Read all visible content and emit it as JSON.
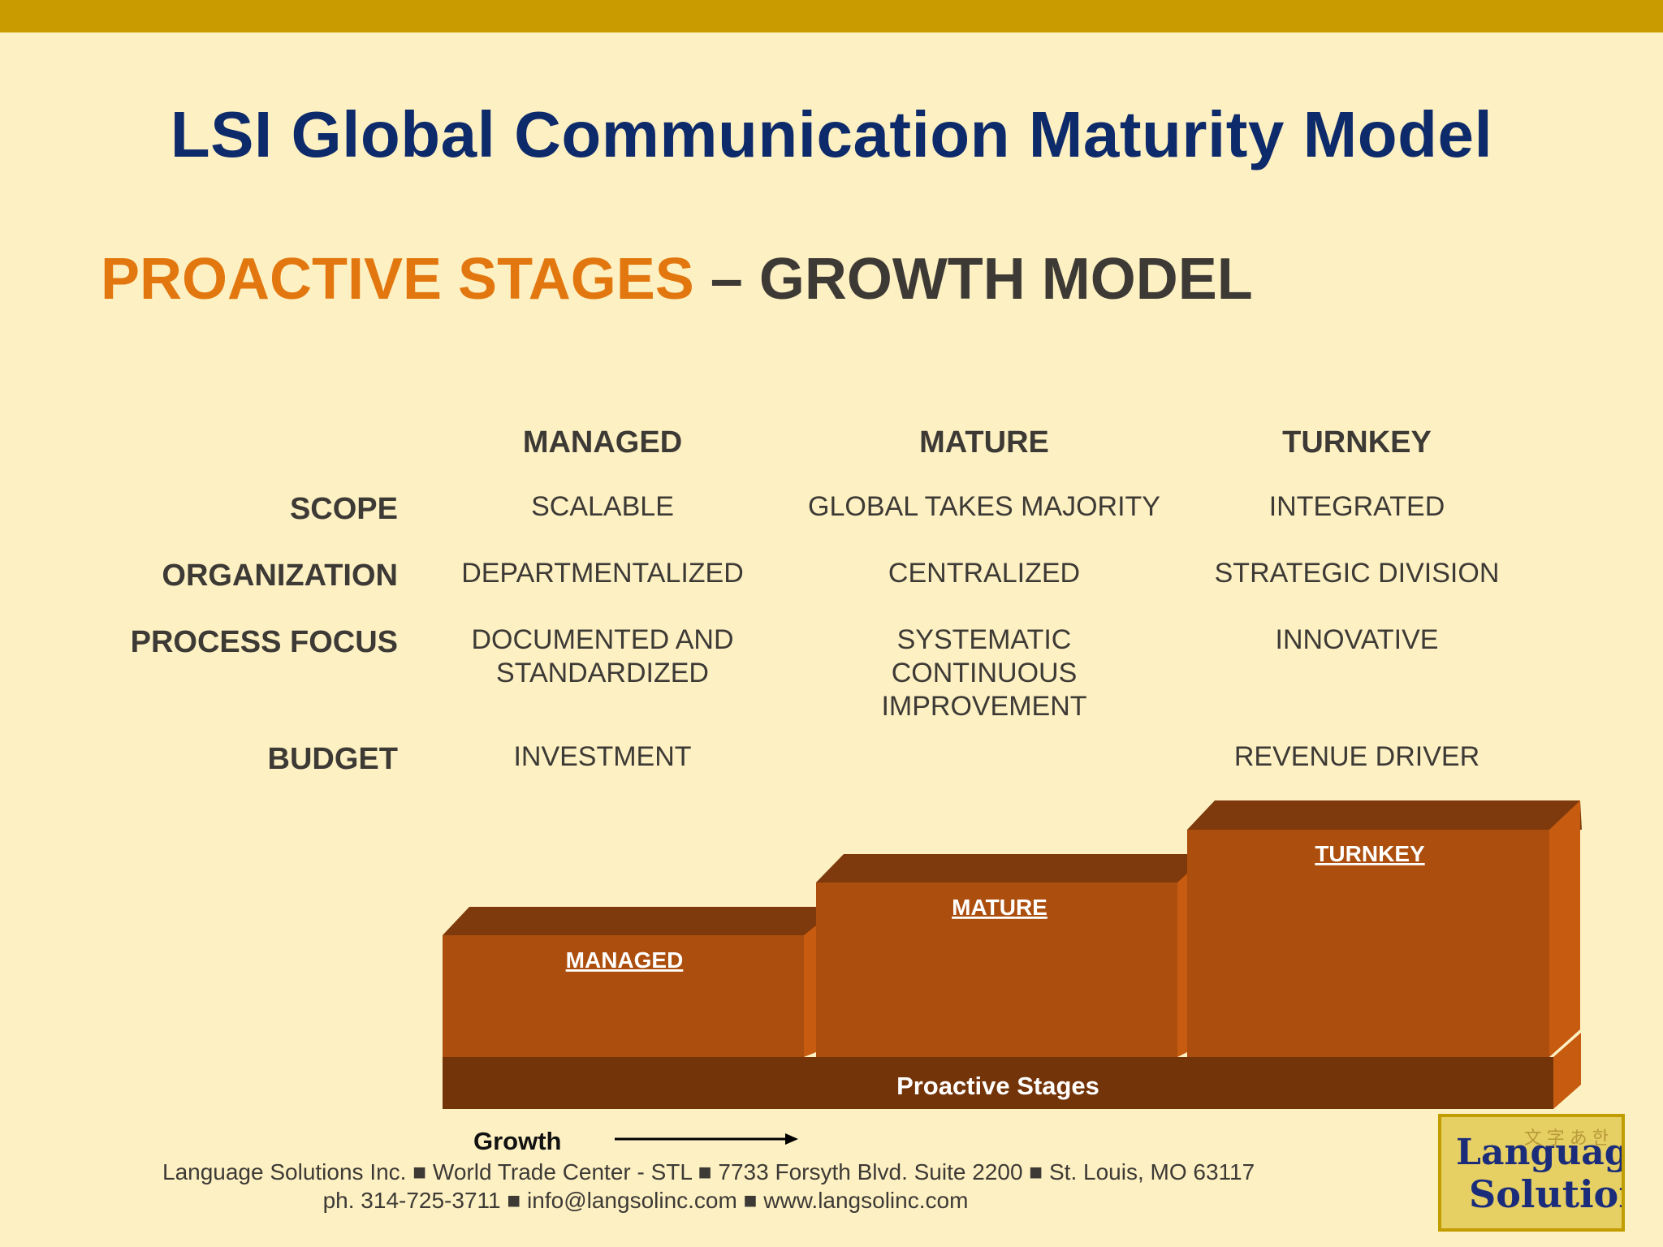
{
  "title": "LSI Global Communication Maturity Model",
  "subtitle": {
    "orange": "PROACTIVE STAGES",
    "dash": " – ",
    "dark": "GROWTH MODEL"
  },
  "table": {
    "columns": [
      "MANAGED",
      "MATURE",
      "TURNKEY"
    ],
    "rows": [
      {
        "label": "SCOPE",
        "cells": [
          "SCALABLE",
          "GLOBAL TAKES MAJORITY",
          "INTEGRATED"
        ]
      },
      {
        "label": "ORGANIZATION",
        "cells": [
          "DEPARTMENTALIZED",
          "CENTRALIZED",
          "STRATEGIC DIVISION"
        ]
      },
      {
        "label": "PROCESS FOCUS",
        "cells": [
          "DOCUMENTED AND\nSTANDARDIZED",
          "SYSTEMATIC\nCONTINUOUS\nIMPROVEMENT",
          "INNOVATIVE"
        ]
      },
      {
        "label": "BUDGET",
        "cells": [
          "INVESTMENT",
          "",
          "REVENUE DRIVER"
        ]
      }
    ]
  },
  "diagram": {
    "steps": [
      "MANAGED",
      "MATURE",
      "TURNKEY"
    ],
    "base_label": "Proactive Stages",
    "colors": {
      "front": "#ac4e0d",
      "top": "#7e3a0c",
      "side": "#c75b10",
      "base": "#743409"
    }
  },
  "growth": {
    "label": "Growth"
  },
  "footer": {
    "line1": "Language Solutions Inc. ■ World Trade Center - STL ■ 7733 Forsyth Blvd. Suite 2200 ■ St. Louis, MO 63117",
    "line2": "ph. 314-725-3711 ■ info@langsolinc.com ■ www.langsolinc.com"
  },
  "logo": {
    "line1": "Language",
    "line2": "Solutions"
  }
}
